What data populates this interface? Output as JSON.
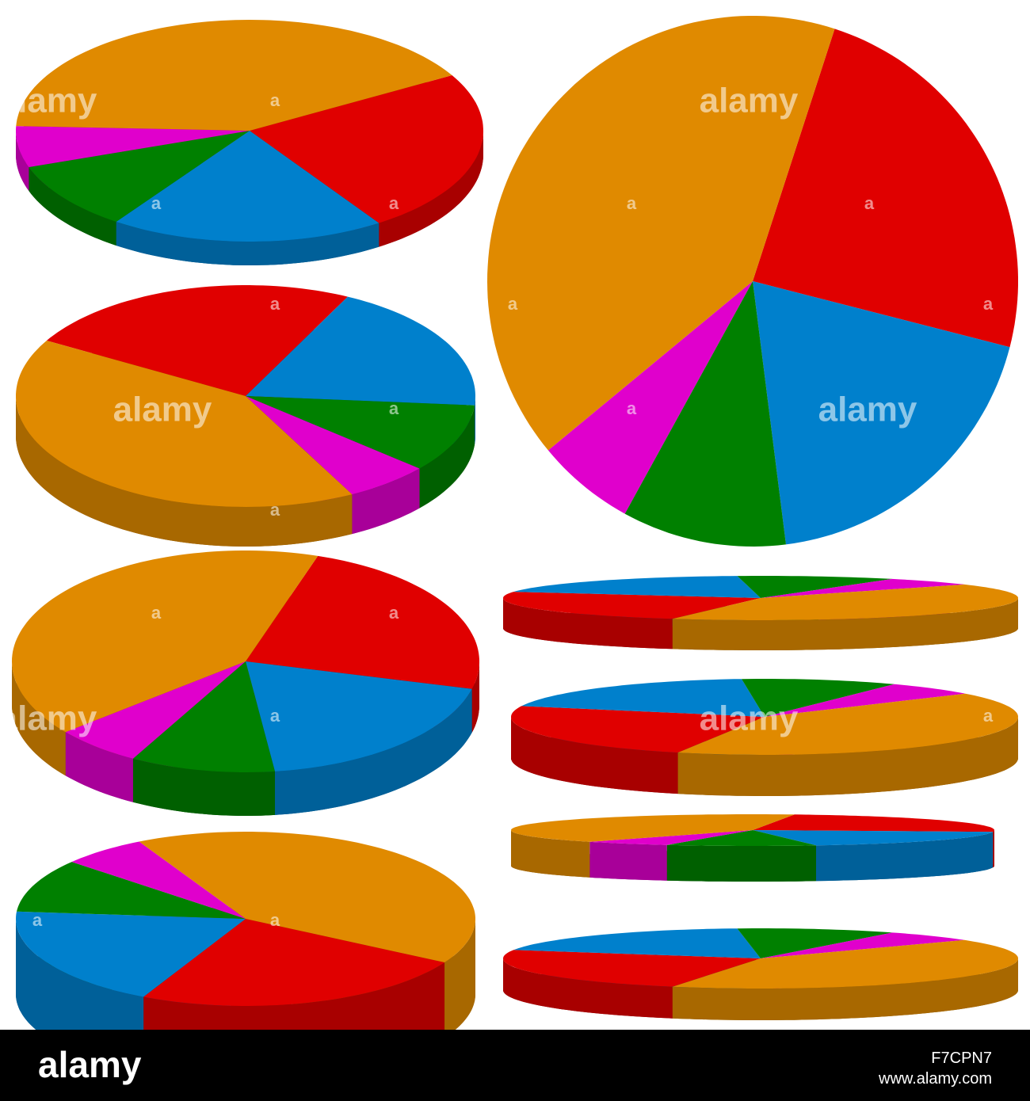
{
  "pie_set": {
    "slices": [
      {
        "color": "#e00000",
        "share": 24
      },
      {
        "color": "#0080cc",
        "share": 19
      },
      {
        "color": "#008000",
        "share": 10
      },
      {
        "color": "#e000cc",
        "share": 6
      },
      {
        "color": "#e08a00",
        "share": 41
      }
    ]
  },
  "watermark": {
    "brand": "alamy",
    "letter": "a"
  },
  "footer": {
    "brand": "alamy",
    "image_id": "F7CPN7",
    "url": "www.alamy.com"
  }
}
